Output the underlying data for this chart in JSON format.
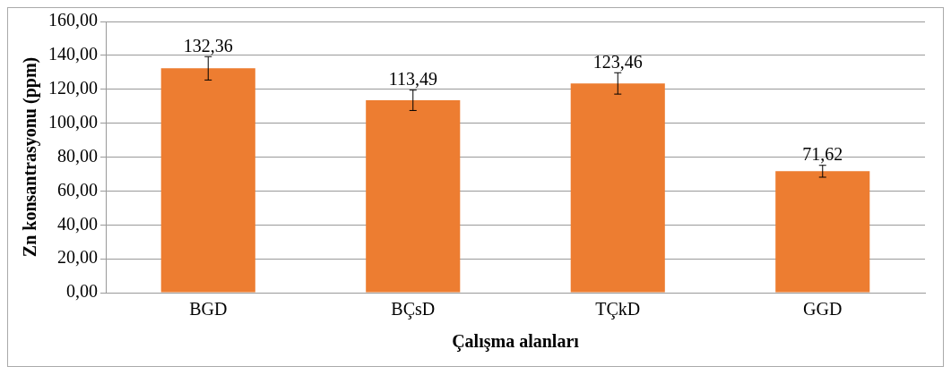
{
  "chart_data": {
    "type": "bar",
    "categories": [
      "BGD",
      "BÇsD",
      "TÇkD",
      "GGD"
    ],
    "values": [
      132.36,
      113.49,
      123.46,
      71.62
    ],
    "color": "#ed7d31",
    "errors": [
      6.9,
      6.0,
      6.3,
      3.5
    ],
    "value_labels": [
      "132,36",
      "113,49",
      "123,46",
      "71,62"
    ],
    "xlabel": "Çalışma alanları",
    "ylabel": "Zn konsantrasyonu (ppm)",
    "ylim": [
      0,
      160
    ],
    "yticks": [
      {
        "value": 0,
        "label": "0,00"
      },
      {
        "value": 20,
        "label": "20,00"
      },
      {
        "value": 40,
        "label": "40,00"
      },
      {
        "value": 60,
        "label": "60,00"
      },
      {
        "value": 80,
        "label": "80,00"
      },
      {
        "value": 100,
        "label": "100,00"
      },
      {
        "value": 120,
        "label": "120,00"
      },
      {
        "value": 140,
        "label": "140,00"
      },
      {
        "value": 160,
        "label": "160,00"
      }
    ],
    "grid": "y",
    "legend": false
  }
}
